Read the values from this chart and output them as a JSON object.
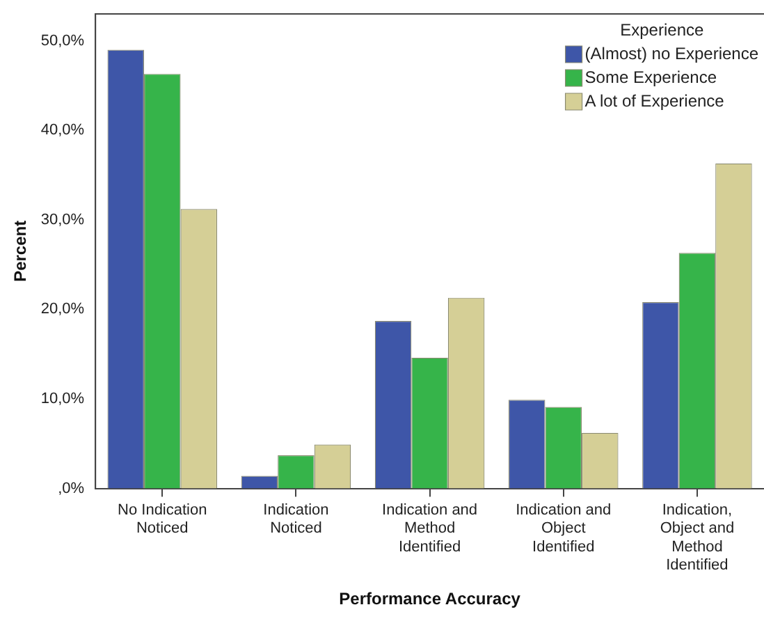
{
  "chart_data": {
    "type": "bar",
    "xlabel": "Performance Accuracy",
    "ylabel": "Percent",
    "legend_title": "Experience",
    "categories": [
      "No Indication Noticed",
      "Indication Noticed",
      "Indication and Method Identified",
      "Indication and Object Identified",
      "Indication, Object and Method Identified"
    ],
    "series": [
      {
        "name": "(Almost) no Experience",
        "color": "#3e56a8",
        "values": [
          49.0,
          1.4,
          18.7,
          9.9,
          20.8
        ]
      },
      {
        "name": "Some Experience",
        "color": "#36b44a",
        "values": [
          46.3,
          3.7,
          14.6,
          9.1,
          26.3
        ]
      },
      {
        "name": "A lot of Experience",
        "color": "#d5cf96",
        "values": [
          31.2,
          4.9,
          21.3,
          6.2,
          36.3
        ]
      }
    ],
    "ylim": [
      0,
      53
    ],
    "yticks": [
      {
        "value": 0,
        "label": ",0%"
      },
      {
        "value": 10,
        "label": "10,0%"
      },
      {
        "value": 20,
        "label": "20,0%"
      },
      {
        "value": 30,
        "label": "30,0%"
      },
      {
        "value": 40,
        "label": "40,0%"
      },
      {
        "value": 50,
        "label": "50,0%"
      }
    ],
    "grid": false,
    "legend": "top right"
  }
}
